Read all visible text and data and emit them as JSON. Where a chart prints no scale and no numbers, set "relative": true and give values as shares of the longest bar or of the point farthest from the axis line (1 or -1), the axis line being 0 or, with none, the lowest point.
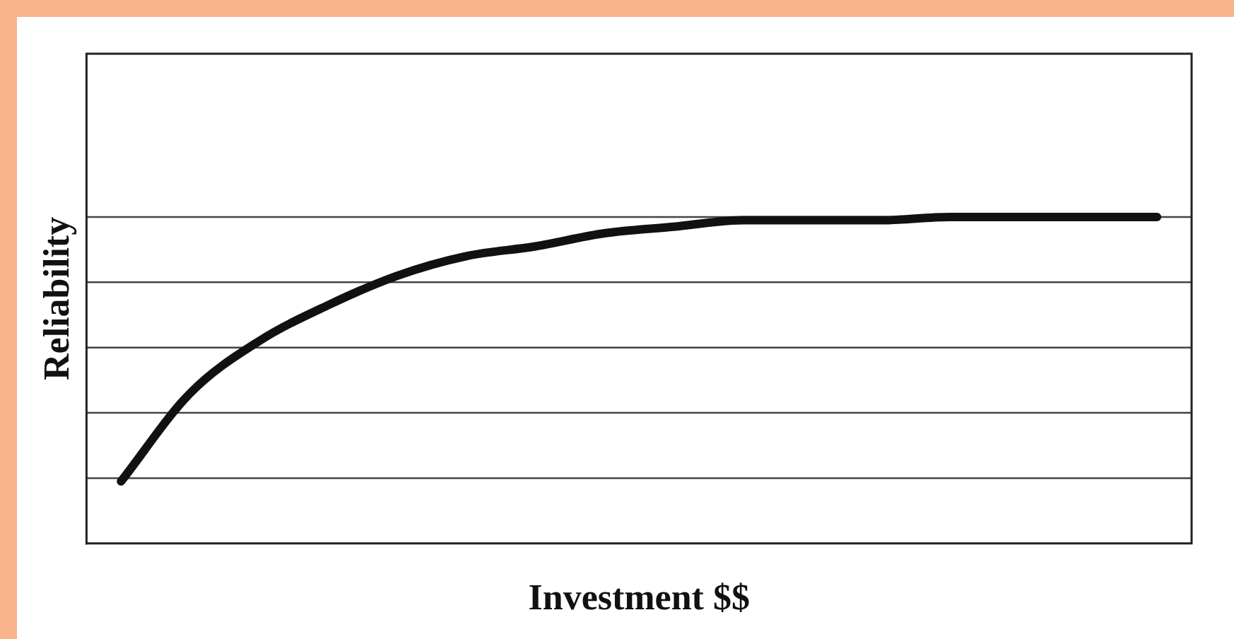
{
  "chart_data": {
    "type": "line",
    "xlabel": "Investment $$",
    "ylabel": "Reliability",
    "relative": true,
    "ref_lines": [
      {
        "axis": "y",
        "value": 0.2,
        "color": "#444444"
      },
      {
        "axis": "y",
        "value": 0.4,
        "color": "#444444"
      },
      {
        "axis": "y",
        "value": 0.6,
        "color": "#444444"
      },
      {
        "axis": "y",
        "value": 0.8,
        "color": "#444444"
      },
      {
        "axis": "y",
        "value": 1.0,
        "color": "#444444"
      }
    ],
    "marker": "none",
    "line_style": "solid",
    "categories": [
      null,
      null,
      null,
      null,
      null,
      null,
      null,
      null,
      null,
      null,
      null,
      null,
      null,
      null,
      null,
      null
    ],
    "series": [
      {
        "color": "#111111",
        "values": [
          0.19,
          0.46,
          0.62,
          0.73,
          0.82,
          0.88,
          0.91,
          0.95,
          0.97,
          0.99,
          0.99,
          0.99,
          1.0,
          1.0,
          1.0,
          1.0
        ]
      }
    ]
  }
}
